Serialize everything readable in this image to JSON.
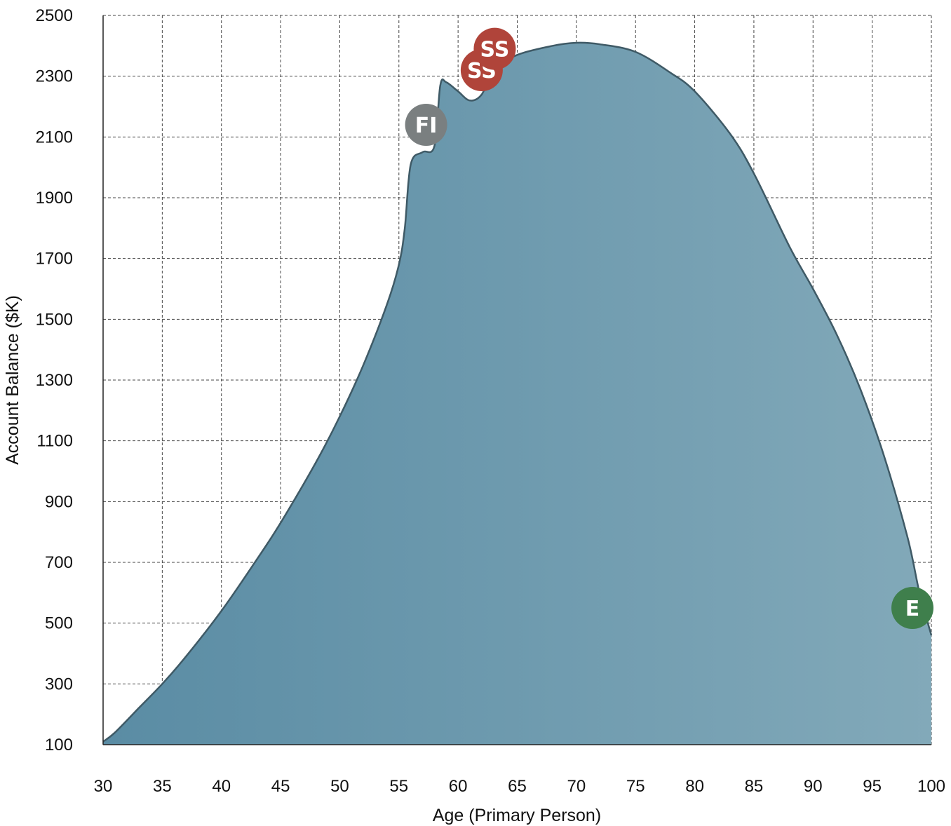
{
  "chart_data": {
    "type": "area",
    "title": "",
    "xlabel": "Age (Primary Person)",
    "ylabel": "Account Balance ($K)",
    "xlim": [
      30,
      100
    ],
    "ylim": [
      100,
      2500
    ],
    "x_ticks": [
      30,
      35,
      40,
      45,
      50,
      55,
      60,
      65,
      70,
      75,
      80,
      85,
      90,
      95,
      100
    ],
    "y_ticks": [
      100,
      300,
      500,
      700,
      900,
      1100,
      1300,
      1500,
      1700,
      1900,
      2100,
      2300,
      2500
    ],
    "grid": true,
    "colors": {
      "fill_start": "#5A8CA4",
      "fill_end": "#82A9B9",
      "line": "#3F5A66",
      "grid": "#444444"
    },
    "series": [
      {
        "x": [
          30,
          31,
          33,
          35,
          37,
          40,
          43,
          45,
          48,
          50,
          52,
          54,
          55,
          55.5,
          56,
          57,
          58,
          58.5,
          59,
          60,
          61,
          62,
          63,
          65,
          68,
          70,
          72,
          75,
          78,
          80,
          83,
          85,
          88,
          90,
          92,
          94,
          96,
          98,
          99,
          100
        ],
        "y": [
          110,
          140,
          220,
          300,
          390,
          540,
          710,
          830,
          1030,
          1180,
          1350,
          1550,
          1680,
          1800,
          2010,
          2050,
          2070,
          2270,
          2280,
          2250,
          2220,
          2240,
          2320,
          2370,
          2400,
          2410,
          2405,
          2380,
          2310,
          2250,
          2110,
          1980,
          1740,
          1600,
          1450,
          1270,
          1050,
          780,
          600,
          460
        ]
      }
    ],
    "markers": [
      {
        "label": "FI",
        "x": 57.3,
        "y": 2140,
        "color": "#7A7F80"
      },
      {
        "label": "SS",
        "x": 62.0,
        "y": 2320,
        "color": "#B0443A"
      },
      {
        "label": "SS",
        "x": 63.1,
        "y": 2390,
        "color": "#B0443A"
      },
      {
        "label": "E",
        "x": 98.4,
        "y": 550,
        "color": "#3F7F4C"
      }
    ]
  }
}
